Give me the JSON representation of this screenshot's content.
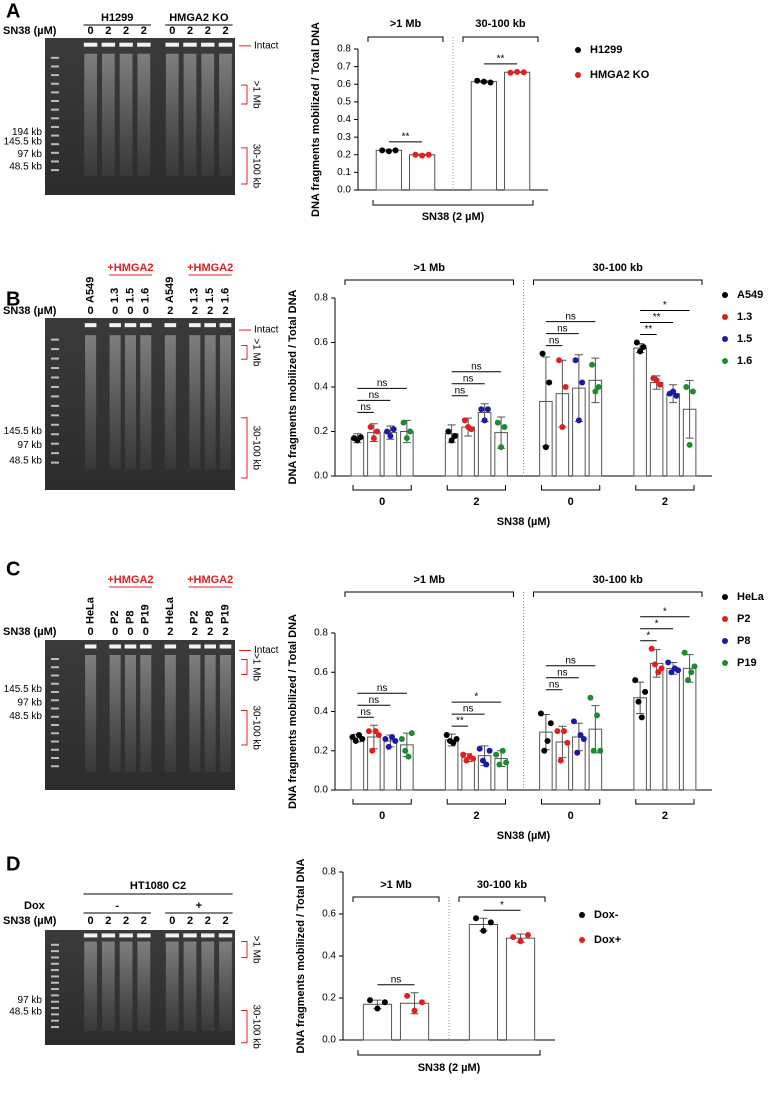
{
  "panels": [
    {
      "letter": "A",
      "gel": {
        "dose_label": "SN38 (µM)",
        "groups": [
          {
            "label": "H1299",
            "color": "#000000",
            "lanes": [
              {
                "dose": "0"
              },
              {
                "dose": "2"
              },
              {
                "dose": "2"
              },
              {
                "dose": "2"
              }
            ]
          },
          {
            "label": "HMGA2 KO",
            "color": "#000000",
            "lanes": [
              {
                "dose": "0"
              },
              {
                "dose": "2"
              },
              {
                "dose": "2"
              },
              {
                "dose": "2"
              }
            ]
          }
        ],
        "markers": [
          "194 kb",
          "145.5 kb",
          "97 kb",
          "48.5 kb"
        ],
        "intact": "Intact",
        "regions": [
          ">1 Mb",
          "30-100 kb"
        ]
      }
    },
    {
      "letter": "B",
      "gel": {
        "dose_label": "SN38 (µM)",
        "groups": [
          {
            "color": "#000000",
            "lanes": [
              {
                "name": "A549",
                "dose": "0"
              }
            ]
          },
          {
            "label": "+HMGA2",
            "color": "#e02020",
            "lanes": [
              {
                "name": "1.3",
                "dose": "0"
              },
              {
                "name": "1.5",
                "dose": "0"
              },
              {
                "name": "1.6",
                "dose": "0"
              }
            ]
          },
          {
            "color": "#000000",
            "lanes": [
              {
                "name": "A549",
                "dose": "2"
              }
            ]
          },
          {
            "label": "+HMGA2",
            "color": "#e02020",
            "lanes": [
              {
                "name": "1.3",
                "dose": "2"
              },
              {
                "name": "1.5",
                "dose": "2"
              },
              {
                "name": "1.6",
                "dose": "2"
              }
            ]
          }
        ],
        "markers": [
          "145.5 kb",
          "97 kb",
          "48.5 kb"
        ],
        "intact": "Intact",
        "regions": [
          ">1 Mb",
          "30-100 kb"
        ]
      }
    },
    {
      "letter": "C",
      "gel": {
        "dose_label": "SN38 (µM)",
        "groups": [
          {
            "color": "#000000",
            "lanes": [
              {
                "name": "HeLa",
                "dose": "0"
              }
            ]
          },
          {
            "label": "+HMGA2",
            "color": "#e02020",
            "lanes": [
              {
                "name": "P2",
                "dose": "0"
              },
              {
                "name": "P8",
                "dose": "0"
              },
              {
                "name": "P19",
                "dose": "0"
              }
            ]
          },
          {
            "color": "#000000",
            "lanes": [
              {
                "name": "HeLa",
                "dose": "2"
              }
            ]
          },
          {
            "label": "+HMGA2",
            "color": "#e02020",
            "lanes": [
              {
                "name": "P2",
                "dose": "2"
              },
              {
                "name": "P8",
                "dose": "2"
              },
              {
                "name": "P19",
                "dose": "2"
              }
            ]
          }
        ],
        "markers": [
          "145.5 kb",
          "97 kb",
          "48.5 kb"
        ],
        "intact": "Intact",
        "regions": [
          ">1 Mb",
          "30-100 kb"
        ]
      }
    },
    {
      "letter": "D",
      "gel": {
        "dose_label": "SN38 (µM)",
        "supergroup": "HT1080 C2",
        "group_row_label": "Dox",
        "groups": [
          {
            "label": "-",
            "color": "#000000",
            "lanes": [
              {
                "dose": "0"
              },
              {
                "dose": "2"
              },
              {
                "dose": "2"
              },
              {
                "dose": "2"
              }
            ]
          },
          {
            "label": "+",
            "color": "#000000",
            "lanes": [
              {
                "dose": "0"
              },
              {
                "dose": "2"
              },
              {
                "dose": "2"
              },
              {
                "dose": "2"
              }
            ]
          }
        ],
        "markers": [
          "97 kb",
          "48.5 kb"
        ],
        "regions": [
          ">1 Mb",
          "30-100 kb"
        ]
      }
    }
  ],
  "chart_data": [
    {
      "type": "bar",
      "ylabel": "DNA fragments mobilized / Total DNA",
      "xlabel": "SN38 (2 µM)",
      "categories": [
        ">1 Mb",
        "30-100 kb"
      ],
      "series": [
        {
          "name": "H1299",
          "color": "#000000",
          "values": [
            0.225,
            0.615
          ],
          "errors": [
            0.003,
            0.005
          ],
          "points": [
            [
              0.225,
              0.22,
              0.225
            ],
            [
              0.62,
              0.615,
              0.61
            ]
          ]
        },
        {
          "name": "HMGA2 KO",
          "color": "#e02020",
          "values": [
            0.2,
            0.668
          ],
          "errors": [
            0.003,
            0.002
          ],
          "points": [
            [
              0.2,
              0.195,
              0.2
            ],
            [
              0.665,
              0.67,
              0.668
            ]
          ]
        }
      ],
      "ylim": [
        0,
        0.8
      ],
      "yticks": [
        {
          "value": 0,
          "label": "0.0"
        },
        0.1,
        0.2,
        0.3,
        0.4,
        0.5,
        0.6,
        0.7,
        0.8
      ],
      "comparisons": [
        {
          "category": 0,
          "pair": [
            0,
            1
          ],
          "label": "**"
        },
        {
          "category": 1,
          "pair": [
            0,
            1
          ],
          "label": "**"
        }
      ],
      "legend": "right"
    },
    {
      "type": "bar",
      "ylabel": "DNA fragments mobilized / Total DNA",
      "xlabel": "SN38 (µM)",
      "groups": [
        ">1 Mb",
        "30-100 kb"
      ],
      "categories": [
        "0",
        "2",
        "0",
        "2"
      ],
      "series": [
        {
          "name": "A549",
          "color": "#000000",
          "values": [
            0.17,
            0.19,
            0.335,
            0.575
          ],
          "errors": [
            0.02,
            0.04,
            0.2,
            0.02
          ],
          "points": [
            [
              0.17,
              0.16,
              0.175
            ],
            [
              0.2,
              0.16,
              0.18
            ],
            [
              0.55,
              0.13,
              0.42
            ],
            [
              0.6,
              0.56,
              0.58
            ]
          ]
        },
        {
          "name": "1.3",
          "color": "#e02020",
          "values": [
            0.195,
            0.22,
            0.37,
            0.42
          ],
          "errors": [
            0.04,
            0.04,
            0.15,
            0.03
          ],
          "points": [
            [
              0.22,
              0.17,
              0.2
            ],
            [
              0.25,
              0.22,
              0.21
            ],
            [
              0.52,
              0.22,
              0.4
            ],
            [
              0.44,
              0.43,
              0.41
            ]
          ]
        },
        {
          "name": "1.5",
          "color": "#1a1aa6",
          "values": [
            0.195,
            0.285,
            0.395,
            0.37
          ],
          "errors": [
            0.03,
            0.04,
            0.15,
            0.04
          ],
          "points": [
            [
              0.2,
              0.18,
              0.21
            ],
            [
              0.3,
              0.25,
              0.3
            ],
            [
              0.52,
              0.25,
              0.42
            ],
            [
              0.37,
              0.38,
              0.36
            ]
          ]
        },
        {
          "name": "1.6",
          "color": "#1e8c2e",
          "values": [
            0.2,
            0.195,
            0.43,
            0.3
          ],
          "errors": [
            0.05,
            0.07,
            0.1,
            0.13
          ],
          "points": [
            [
              0.24,
              0.17,
              0.2
            ],
            [
              0.24,
              0.13,
              0.22
            ],
            [
              0.5,
              0.38,
              0.4
            ],
            [
              0.4,
              0.14,
              0.38
            ]
          ]
        }
      ],
      "ylim": [
        0,
        0.8
      ],
      "yticks": [
        {
          "value": 0,
          "label": "0.0"
        },
        0.2,
        0.4,
        0.6,
        0.8
      ],
      "comparisons": [
        {
          "category": 0,
          "pair": [
            0,
            1
          ],
          "label": "ns"
        },
        {
          "category": 0,
          "pair": [
            0,
            2
          ],
          "label": "ns"
        },
        {
          "category": 0,
          "pair": [
            0,
            3
          ],
          "label": "ns"
        },
        {
          "category": 1,
          "pair": [
            0,
            1
          ],
          "label": "ns"
        },
        {
          "category": 1,
          "pair": [
            0,
            2
          ],
          "label": "ns"
        },
        {
          "category": 1,
          "pair": [
            0,
            3
          ],
          "label": "ns"
        },
        {
          "category": 2,
          "pair": [
            0,
            1
          ],
          "label": "ns"
        },
        {
          "category": 2,
          "pair": [
            0,
            2
          ],
          "label": "ns"
        },
        {
          "category": 2,
          "pair": [
            0,
            3
          ],
          "label": "ns"
        },
        {
          "category": 3,
          "pair": [
            0,
            1
          ],
          "label": "**"
        },
        {
          "category": 3,
          "pair": [
            0,
            2
          ],
          "label": "**"
        },
        {
          "category": 3,
          "pair": [
            0,
            3
          ],
          "label": "*"
        }
      ],
      "legend": "right"
    },
    {
      "type": "bar",
      "ylabel": "DNA fragments mobilized / Total DNA",
      "xlabel": "SN38 (µM)",
      "groups": [
        ">1 Mb",
        "30-100 kb"
      ],
      "categories": [
        "0",
        "2",
        "0",
        "2"
      ],
      "series": [
        {
          "name": "HeLa",
          "color": "#000000",
          "values": [
            0.265,
            0.255,
            0.295,
            0.47
          ],
          "errors": [
            0.02,
            0.03,
            0.09,
            0.08
          ],
          "points": [
            [
              0.27,
              0.25,
              0.28,
              0.26
            ],
            [
              0.28,
              0.25,
              0.24,
              0.26
            ],
            [
              0.39,
              0.2,
              0.25,
              0.34
            ],
            [
              0.56,
              0.45,
              0.37,
              0.5
            ]
          ]
        },
        {
          "name": "P2",
          "color": "#e02020",
          "values": [
            0.27,
            0.165,
            0.245,
            0.645
          ],
          "errors": [
            0.06,
            0.02,
            0.08,
            0.07
          ],
          "points": [
            [
              0.3,
              0.2,
              0.3,
              0.28
            ],
            [
              0.18,
              0.15,
              0.17,
              0.16
            ],
            [
              0.3,
              0.15,
              0.3,
              0.24
            ],
            [
              0.72,
              0.64,
              0.6,
              0.62
            ]
          ]
        },
        {
          "name": "P8",
          "color": "#1a1aa6",
          "values": [
            0.25,
            0.175,
            0.27,
            0.62
          ],
          "errors": [
            0.03,
            0.05,
            0.07,
            0.03
          ],
          "points": [
            [
              0.26,
              0.22,
              0.27,
              0.25
            ],
            [
              0.21,
              0.15,
              0.13,
              0.2
            ],
            [
              0.35,
              0.19,
              0.28,
              0.26
            ],
            [
              0.65,
              0.6,
              0.62,
              0.61
            ]
          ]
        },
        {
          "name": "P19",
          "color": "#1e8c2e",
          "values": [
            0.23,
            0.16,
            0.31,
            0.62
          ],
          "errors": [
            0.06,
            0.04,
            0.12,
            0.07
          ],
          "points": [
            [
              0.26,
              0.2,
              0.17,
              0.29
            ],
            [
              0.18,
              0.13,
              0.2,
              0.14
            ],
            [
              0.47,
              0.2,
              0.38,
              0.2
            ],
            [
              0.7,
              0.56,
              0.6,
              0.63
            ]
          ]
        }
      ],
      "ylim": [
        0,
        0.8
      ],
      "yticks": [
        {
          "value": 0,
          "label": "0.0"
        },
        0.2,
        0.4,
        0.6,
        0.8
      ],
      "comparisons": [
        {
          "category": 0,
          "pair": [
            0,
            1
          ],
          "label": "ns"
        },
        {
          "category": 0,
          "pair": [
            0,
            2
          ],
          "label": "ns"
        },
        {
          "category": 0,
          "pair": [
            0,
            3
          ],
          "label": "ns"
        },
        {
          "category": 1,
          "pair": [
            0,
            1
          ],
          "label": "**"
        },
        {
          "category": 1,
          "pair": [
            0,
            2
          ],
          "label": "ns"
        },
        {
          "category": 1,
          "pair": [
            0,
            3
          ],
          "label": "*"
        },
        {
          "category": 2,
          "pair": [
            0,
            1
          ],
          "label": "ns"
        },
        {
          "category": 2,
          "pair": [
            0,
            2
          ],
          "label": "ns"
        },
        {
          "category": 2,
          "pair": [
            0,
            3
          ],
          "label": "ns"
        },
        {
          "category": 3,
          "pair": [
            0,
            1
          ],
          "label": "*"
        },
        {
          "category": 3,
          "pair": [
            0,
            2
          ],
          "label": "*"
        },
        {
          "category": 3,
          "pair": [
            0,
            3
          ],
          "label": "*"
        }
      ],
      "legend": "right"
    },
    {
      "type": "bar",
      "ylabel": "DNA fragments mobilized / Total DNA",
      "xlabel": "SN38 (2 µM)",
      "categories": [
        ">1 Mb",
        "30-100 kb"
      ],
      "series": [
        {
          "name": "Dox-",
          "color": "#000000",
          "values": [
            0.17,
            0.55
          ],
          "errors": [
            0.02,
            0.03
          ],
          "points": [
            [
              0.19,
              0.15,
              0.18
            ],
            [
              0.58,
              0.52,
              0.56
            ]
          ]
        },
        {
          "name": "Dox+",
          "color": "#e02020",
          "values": [
            0.175,
            0.485
          ],
          "errors": [
            0.05,
            0.02
          ],
          "points": [
            [
              0.21,
              0.14,
              0.18
            ],
            [
              0.49,
              0.47,
              0.5
            ]
          ]
        }
      ],
      "ylim": [
        0,
        0.8
      ],
      "yticks": [
        {
          "value": 0,
          "label": "0.0"
        },
        0.2,
        0.4,
        0.6,
        0.8
      ],
      "comparisons": [
        {
          "category": 0,
          "pair": [
            0,
            1
          ],
          "label": "ns"
        },
        {
          "category": 1,
          "pair": [
            0,
            1
          ],
          "label": "*"
        }
      ],
      "legend": "right"
    }
  ]
}
